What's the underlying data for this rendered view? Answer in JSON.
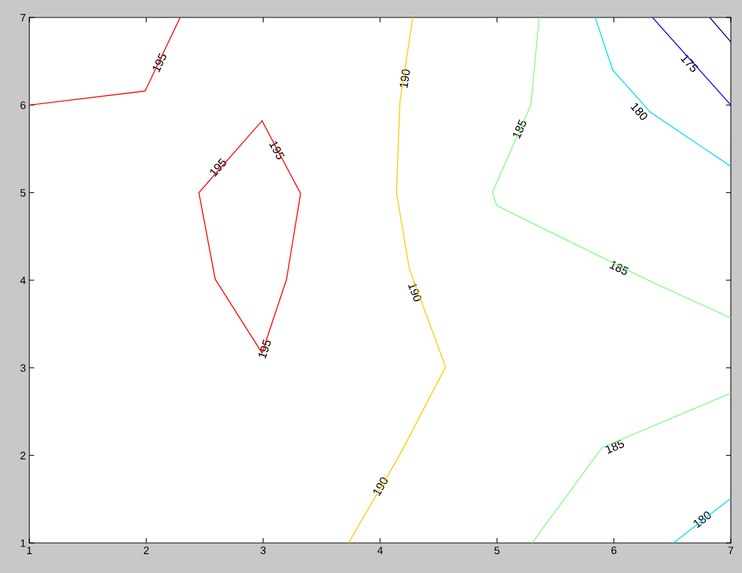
{
  "chart_data": {
    "type": "line",
    "xlim": [
      1,
      7
    ],
    "ylim": [
      1,
      7
    ],
    "xticks": [
      1,
      2,
      3,
      4,
      5,
      6,
      7
    ],
    "yticks": [
      1,
      2,
      3,
      4,
      5,
      6,
      7
    ],
    "grid": false,
    "legend": false,
    "marker": "none",
    "line_style": "solid",
    "series": [
      {
        "color": "#ff0000",
        "x": [
          1,
          1.99,
          2.29
        ],
        "values": [
          6,
          6.16,
          7
        ]
      },
      {
        "color": "#ff0000",
        "x": [
          2.99,
          3.32,
          3.2,
          2.99
        ],
        "values": [
          5.82,
          4.99,
          4.01,
          3.17
        ]
      },
      {
        "color": "#ff0000",
        "x": [
          2.99,
          2.59,
          2.45,
          2.99
        ],
        "values": [
          3.17,
          4.01,
          5.0,
          5.82
        ]
      },
      {
        "color": "#ffcc00",
        "x": [
          4.28,
          4.17,
          4.14,
          4.25,
          4.56,
          4.17,
          3.73
        ],
        "values": [
          7,
          6.04,
          5.0,
          4.13,
          3.01,
          2.01,
          1
        ]
      },
      {
        "color": "#80ff80",
        "x": [
          5.36,
          5.29,
          4.96,
          5.0,
          6.34,
          7
        ],
        "values": [
          7,
          6.0,
          5.0,
          4.85,
          3.97,
          3.57
        ]
      },
      {
        "color": "#80ff80",
        "x": [
          5.3,
          5.9,
          7
        ],
        "values": [
          1,
          2.09,
          2.71
        ]
      },
      {
        "color": "#00ddff",
        "x": [
          5.84,
          5.99,
          6.31,
          7
        ],
        "values": [
          7,
          6.4,
          5.92,
          5.3
        ]
      },
      {
        "color": "#00ddff",
        "x": [
          6.51,
          7
        ],
        "values": [
          1,
          1.51
        ]
      },
      {
        "color": "#0000ff",
        "x": [
          6.33,
          7
        ],
        "values": [
          7,
          6.0
        ]
      },
      {
        "color": "#000090",
        "x": [
          6.82,
          7
        ],
        "values": [
          7,
          6.72
        ]
      }
    ],
    "annotations": [
      {
        "text": "195",
        "x": 2.12,
        "y": 6.48
      },
      {
        "text": "195",
        "x": 2.62,
        "y": 5.28
      },
      {
        "text": "195",
        "x": 3.11,
        "y": 5.48
      },
      {
        "text": "195",
        "x": 3.02,
        "y": 3.21
      },
      {
        "text": "190",
        "x": 4.22,
        "y": 6.3
      },
      {
        "text": "190",
        "x": 4.29,
        "y": 3.86
      },
      {
        "text": "190",
        "x": 4.01,
        "y": 1.64
      },
      {
        "text": "185",
        "x": 5.2,
        "y": 5.72
      },
      {
        "text": "185",
        "x": 6.04,
        "y": 4.13
      },
      {
        "text": "185",
        "x": 6.01,
        "y": 2.09
      },
      {
        "text": "180",
        "x": 6.21,
        "y": 5.92
      },
      {
        "text": "180",
        "x": 6.76,
        "y": 1.26
      },
      {
        "text": "175",
        "x": 6.64,
        "y": 6.47
      }
    ]
  }
}
